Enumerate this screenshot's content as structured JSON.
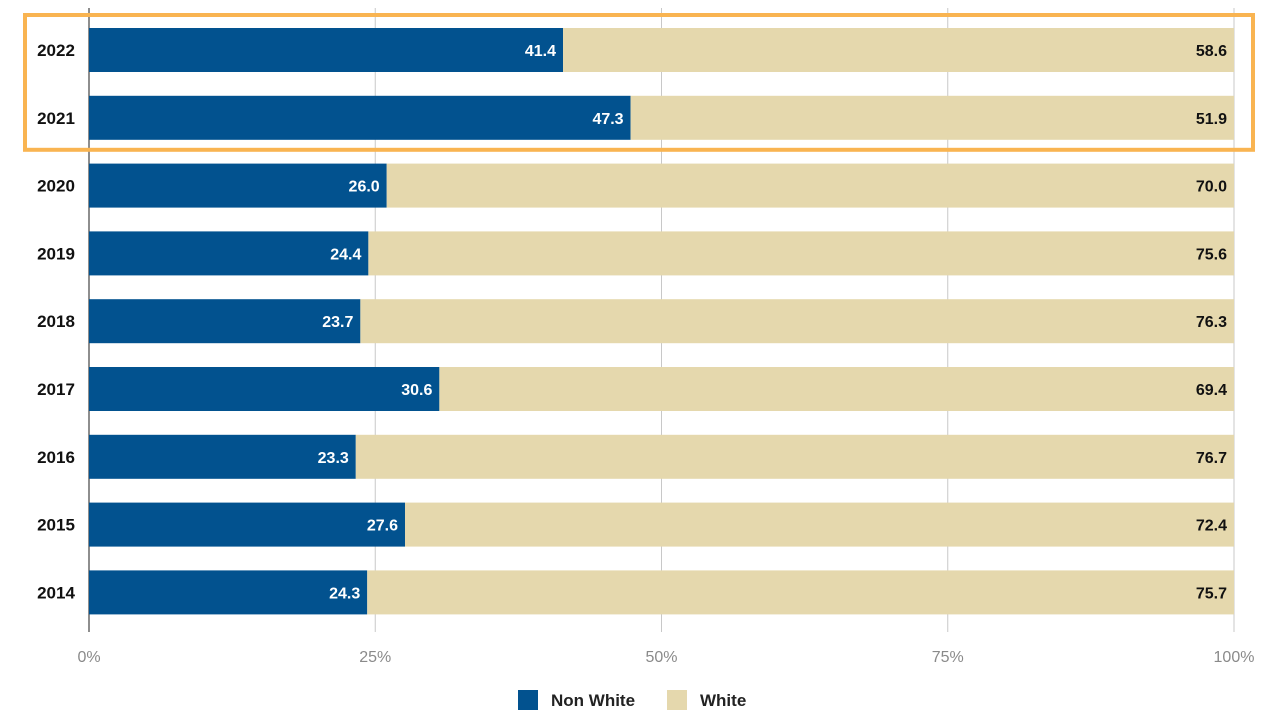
{
  "chart_data": {
    "type": "bar",
    "orientation": "horizontal",
    "stacked": true,
    "categories": [
      "2022",
      "2021",
      "2020",
      "2019",
      "2018",
      "2017",
      "2016",
      "2015",
      "2014"
    ],
    "series": [
      {
        "name": "Non White",
        "color": "#02528f",
        "label_color": "#ffffff",
        "values": [
          41.4,
          47.3,
          26.0,
          24.4,
          23.7,
          30.6,
          23.3,
          27.6,
          24.3
        ],
        "labels": [
          "41.4",
          "47.3",
          "26.0",
          "24.4",
          "23.7",
          "30.6",
          "23.3",
          "27.6",
          "24.3"
        ]
      },
      {
        "name": "White",
        "color": "#e5d8ad",
        "label_color": "#111111",
        "values": [
          58.6,
          51.9,
          70.0,
          75.6,
          76.3,
          69.4,
          76.7,
          72.4,
          75.7
        ],
        "labels": [
          "58.6",
          "51.9",
          "70.0",
          "75.6",
          "76.3",
          "69.4",
          "76.7",
          "72.4",
          "75.7"
        ]
      }
    ],
    "xlim": [
      0,
      100
    ],
    "x_ticks": [
      0,
      25,
      50,
      75,
      100
    ],
    "x_tick_labels": [
      "0%",
      "25%",
      "50%",
      "75%",
      "100%"
    ],
    "grid": true,
    "legend_position": "bottom-center",
    "highlight": {
      "categories": [
        "2022",
        "2021"
      ],
      "color": "#f9b451"
    }
  }
}
